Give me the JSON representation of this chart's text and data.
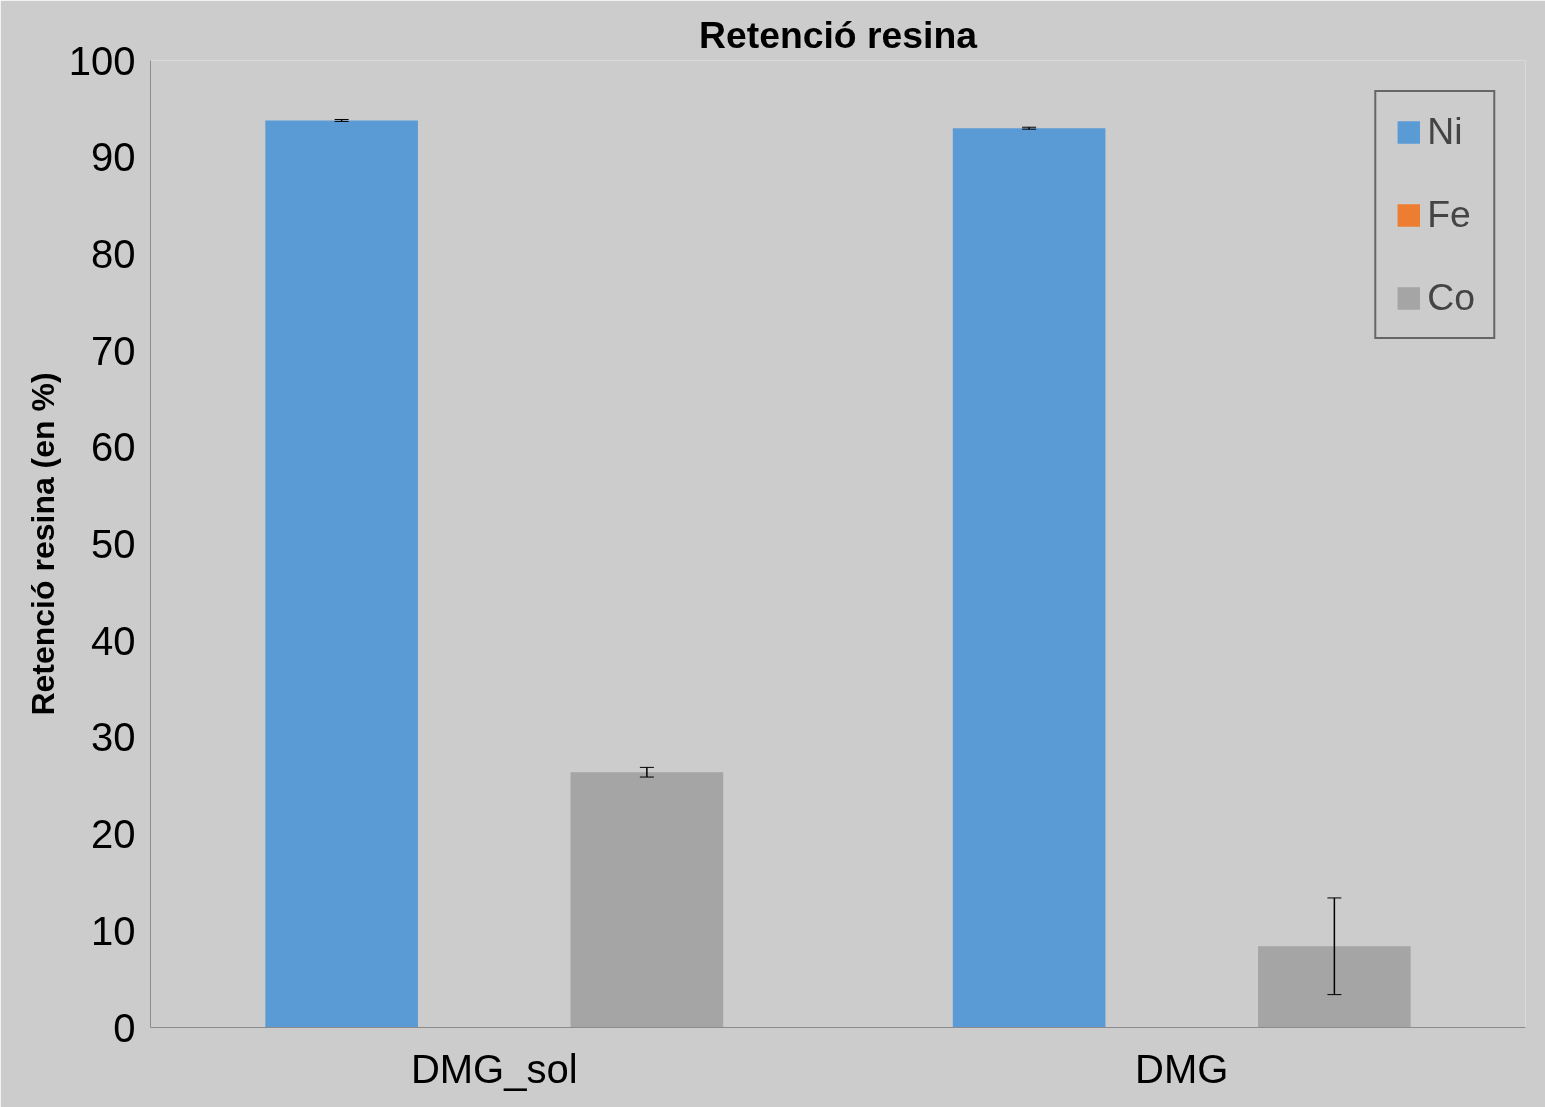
{
  "chart_data": {
    "type": "bar",
    "title": "Retenció resina",
    "ylabel": "Retenció resina (en %)",
    "categories": [
      "DMG_sol",
      "DMG"
    ],
    "series": [
      {
        "name": "Ni",
        "color": "#5b9bd5",
        "values": [
          93.8,
          93.0
        ],
        "errors": [
          0.1,
          0.1
        ]
      },
      {
        "name": "Fe",
        "color": "#ed7d31",
        "values": [
          0,
          0
        ]
      },
      {
        "name": "Co",
        "color": "#a5a5a5",
        "values": [
          26.4,
          8.4
        ],
        "errors": [
          0.5,
          5.0
        ]
      }
    ],
    "ylim": [
      0,
      100
    ],
    "yticks": [
      0,
      10,
      20,
      30,
      40,
      50,
      60,
      70,
      80,
      90,
      100
    ],
    "grid": false,
    "legend": "top right"
  }
}
